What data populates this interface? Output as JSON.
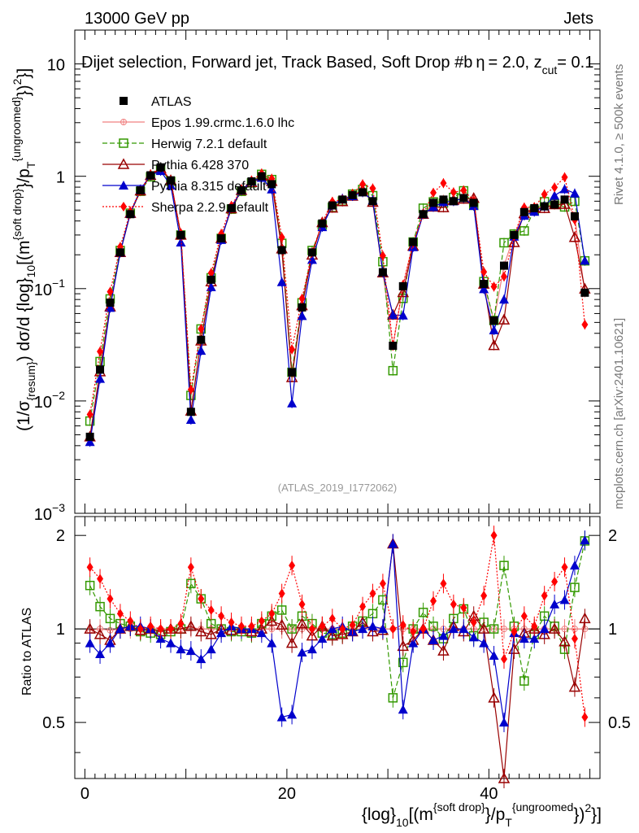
{
  "header": {
    "left": "13000 GeV pp",
    "right": "Jets"
  },
  "side_texts": {
    "rivet": "Rivet 4.1.0, ≥ 500k events",
    "mcplots": "mcplots.cern.ch [arXiv:2401.10621]"
  },
  "watermark": "(ATLAS_2019_I1772062)",
  "chart_data": {
    "type": "scatter",
    "title": "Dijet selection, Forward jet, Track Based, Soft Drop #b",
    "title_suffix": "= 2.0, z",
    "title_sub": "cut",
    "title_end": "= 0.1",
    "title_sym": "η",
    "ylabel_main": "(1/σresum) dσ/d {log}10[(m soft drop / pT ungroomed)²]",
    "ylabel_parts": {
      "a": "(1/σ",
      "a_sub": "{resum}",
      "b": ") dσ/d {log}",
      "b_sub": "10",
      "c": "[(m",
      "c_sup": "{soft drop}",
      "d": "}/p",
      "d_sub": "T",
      "d_sup": "{ungroomed}",
      "e": "})",
      "e_sup": "2",
      "f": "}]"
    },
    "xlabel_parts": {
      "a": "{log}",
      "a_sub": "10",
      "b": "[(m",
      "b_sup": "{soft drop}",
      "c": "}/p",
      "c_sub": "T",
      "c_sup": "{ungroomed",
      "d": "})",
      "d_sup": "2",
      "e": "}]"
    },
    "ratio_ylabel": "Ratio to ATLAS",
    "x_range": [
      -1,
      51
    ],
    "main_ylim": [
      0.001,
      20
    ],
    "ratio_ylim": [
      0.33,
      2.3
    ],
    "x_ticks": [
      0,
      20,
      40
    ],
    "x_tick_labels": [
      "0",
      "20",
      "40"
    ],
    "main_y_ticks": [
      0.001,
      0.01,
      0.1,
      1,
      10
    ],
    "main_y_tick_labels": {
      "t3": {
        "base": "10",
        "exp": "−3"
      },
      "t2": {
        "base": "10",
        "exp": "−2"
      },
      "t1": {
        "base": "10",
        "exp": "−1"
      },
      "t0": {
        "base": "1",
        "exp": ""
      },
      "t10": {
        "base": "10",
        "exp": ""
      }
    },
    "ratio_y_ticks": [
      0.5,
      1,
      2
    ],
    "ratio_y_tick_labels": [
      "0.5",
      "1",
      "2"
    ],
    "x": [
      0.5,
      1.5,
      2.5,
      3.5,
      4.5,
      5.5,
      6.5,
      7.5,
      8.5,
      9.5,
      10.5,
      11.5,
      12.5,
      13.5,
      14.5,
      15.5,
      16.5,
      17.5,
      18.5,
      19.5,
      20.5,
      21.5,
      22.5,
      23.5,
      24.5,
      25.5,
      26.5,
      27.5,
      28.5,
      29.5,
      30.5,
      31.5,
      32.5,
      33.5,
      34.5,
      35.5,
      36.5,
      37.5,
      38.5,
      39.5,
      40.5,
      41.5,
      42.5,
      43.5,
      44.5,
      45.5,
      46.5,
      47.5,
      48.5,
      49.5
    ],
    "atlas": [
      0.0048,
      0.019,
      0.075,
      0.21,
      0.46,
      0.75,
      1.02,
      1.2,
      0.92,
      0.3,
      0.008,
      0.035,
      0.12,
      0.28,
      0.52,
      0.75,
      0.9,
      1.0,
      0.85,
      0.22,
      0.018,
      0.068,
      0.21,
      0.38,
      0.55,
      0.62,
      0.68,
      0.72,
      0.6,
      0.14,
      0.031,
      0.105,
      0.26,
      0.46,
      0.58,
      0.62,
      0.6,
      0.64,
      0.58,
      0.11,
      0.052,
      0.16,
      0.3,
      0.48,
      0.52,
      0.54,
      0.56,
      0.62,
      0.44,
      0.092
    ],
    "series": [
      {
        "name": "ATLAS",
        "color": "#000000",
        "marker": "square-filled"
      },
      {
        "name": "Epos 1.99.crmc.1.6.0 lhc",
        "color": "#f08080",
        "marker": "cross-circle",
        "ratio": [
          0.99,
          1.0,
          0.99,
          1.0,
          1.0,
          1.0,
          1.0,
          1.0,
          1.0,
          1.0,
          1.01,
          1.0,
          1.0,
          1.0,
          1.0,
          1.0,
          1.0,
          1.0,
          1.0,
          1.0,
          1.0,
          1.0,
          1.0,
          1.0,
          1.0,
          1.0,
          1.0,
          1.0,
          1.0,
          1.0,
          1.0,
          1.0,
          1.0,
          1.0,
          1.0,
          1.0,
          1.0,
          1.0,
          1.0,
          1.0,
          1.0,
          1.0,
          1.0,
          1.0,
          1.0,
          1.0,
          1.0,
          1.0,
          1.0,
          1.0
        ]
      },
      {
        "name": "Herwig 7.2.1 default",
        "color": "#339900",
        "marker": "square-open",
        "ratio": [
          1.38,
          1.18,
          1.08,
          1.04,
          1.02,
          0.98,
          0.97,
          0.96,
          0.98,
          1.0,
          1.4,
          1.25,
          1.04,
          1.0,
          0.98,
          0.98,
          0.97,
          1.04,
          1.1,
          1.15,
          1.0,
          1.1,
          1.04,
          0.97,
          0.96,
          0.97,
          1.02,
          1.06,
          1.12,
          1.24,
          0.6,
          0.78,
          1.0,
          1.13,
          1.02,
          0.93,
          1.08,
          1.16,
          0.95,
          1.05,
          1.0,
          1.6,
          1.02,
          0.68,
          0.96,
          1.1,
          1.02,
          0.86,
          1.36,
          1.92
        ]
      },
      {
        "name": "Pythia 6.428 370",
        "color": "#990000",
        "marker": "triangle-open",
        "ratio": [
          1.0,
          0.96,
          0.92,
          1.0,
          1.02,
          0.99,
          1.0,
          0.98,
          1.0,
          1.0,
          1.02,
          0.98,
          0.96,
          1.0,
          0.99,
          1.0,
          0.98,
          1.0,
          1.06,
          1.03,
          0.9,
          1.04,
          0.95,
          1.02,
          0.95,
          0.96,
          0.98,
          1.05,
          0.98,
          0.99,
          1.88,
          0.88,
          0.92,
          1.0,
          0.92,
          0.85,
          1.02,
          0.98,
          1.1,
          1.0,
          0.6,
          0.33,
          0.86,
          0.97,
          1.0,
          0.96,
          1.0,
          0.91,
          0.65,
          1.08
        ]
      },
      {
        "name": "Pythia 8.315 default",
        "color": "#0000cc",
        "marker": "triangle-filled",
        "ratio": [
          0.9,
          0.83,
          0.9,
          1.0,
          1.02,
          1.02,
          1.0,
          0.93,
          0.9,
          0.86,
          0.85,
          0.8,
          0.86,
          0.97,
          1.02,
          1.0,
          1.0,
          0.97,
          0.9,
          0.52,
          0.53,
          0.84,
          0.86,
          0.93,
          1.0,
          1.02,
          0.98,
          1.0,
          1.02,
          1.0,
          1.88,
          0.55,
          0.9,
          1.0,
          0.92,
          0.95,
          1.0,
          1.0,
          0.94,
          0.9,
          0.82,
          0.5,
          0.97,
          0.93,
          0.93,
          1.0,
          1.2,
          1.24,
          1.6,
          1.93
        ]
      },
      {
        "name": "Sherpa 2.2.9 default",
        "color": "#ff0000",
        "marker": "diamond",
        "ratio": [
          1.58,
          1.45,
          1.25,
          1.12,
          1.06,
          1.0,
          1.02,
          1.0,
          1.0,
          1.04,
          1.58,
          1.25,
          1.15,
          1.1,
          1.05,
          1.02,
          1.02,
          1.06,
          1.12,
          1.3,
          1.6,
          1.2,
          1.0,
          1.02,
          1.08,
          1.0,
          1.03,
          1.18,
          1.3,
          1.4,
          1.0,
          1.03,
          0.98,
          1.0,
          1.23,
          1.4,
          1.2,
          1.17,
          1.05,
          1.28,
          2.0,
          0.8,
          0.98,
          1.1,
          1.02,
          1.28,
          1.42,
          1.58,
          0.93,
          0.52
        ]
      }
    ],
    "legend_position": "top-left"
  }
}
